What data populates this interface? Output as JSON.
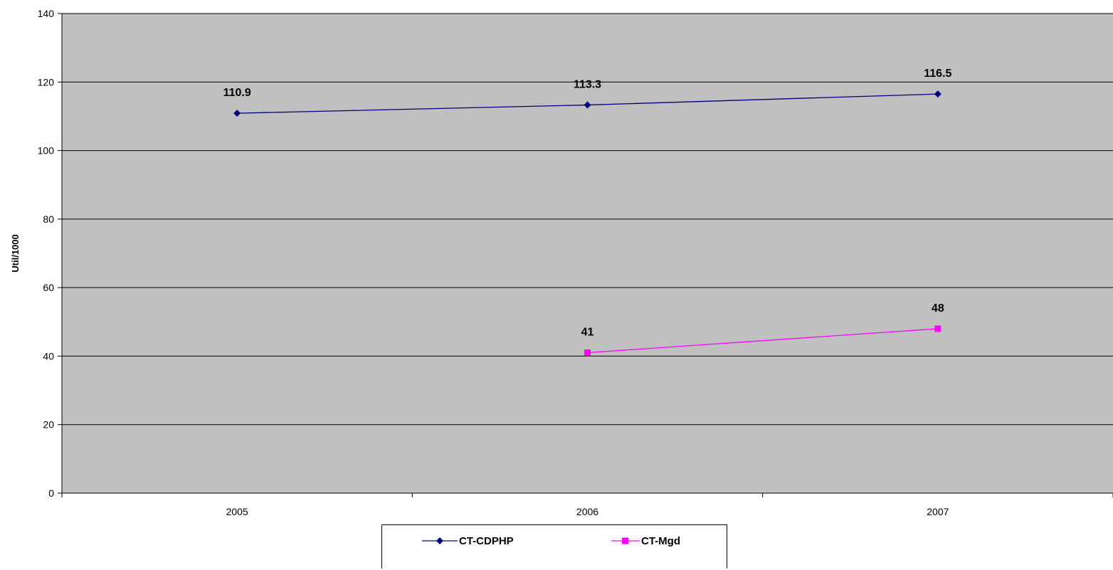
{
  "chart_data": {
    "type": "line",
    "title": "",
    "xlabel": "",
    "ylabel": "Util/1000",
    "categories": [
      "2005",
      "2006",
      "2007"
    ],
    "ylim": [
      0,
      140
    ],
    "yticks": [
      0,
      20,
      40,
      60,
      80,
      100,
      120,
      140
    ],
    "grid": true,
    "legend_position": "bottom",
    "plot_background": "#c0c0c0",
    "series": [
      {
        "name": "CT-CDPHP",
        "color": "#000080",
        "marker": "diamond",
        "values": [
          110.9,
          113.3,
          116.5
        ],
        "labels": [
          "110.9",
          "113.3",
          "116.5"
        ]
      },
      {
        "name": "CT-Mgd",
        "color": "#ff00ff",
        "marker": "square",
        "values": [
          null,
          41,
          48
        ],
        "labels": [
          "",
          "41",
          "48"
        ]
      }
    ]
  }
}
